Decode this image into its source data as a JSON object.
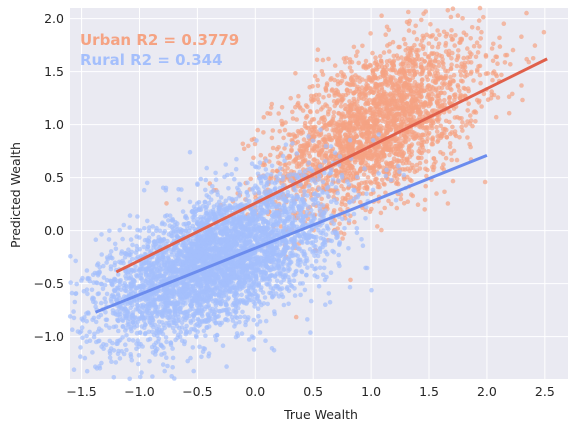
{
  "chart_data": {
    "type": "scatter",
    "title": "",
    "xlabel": "True Wealth",
    "ylabel": "Predicted Wealth",
    "xlim": [
      -1.6,
      2.7
    ],
    "ylim": [
      -1.4,
      2.1
    ],
    "xticks": [
      -1.5,
      -1.0,
      -0.5,
      0.0,
      0.5,
      1.0,
      1.5,
      2.0,
      2.5
    ],
    "xtick_labels": [
      "−1.5",
      "−1.0",
      "−0.5",
      "0.0",
      "0.5",
      "1.0",
      "1.5",
      "2.0",
      "2.5"
    ],
    "yticks": [
      -1.0,
      -0.5,
      0.0,
      0.5,
      1.0,
      1.5,
      2.0
    ],
    "ytick_labels": [
      "−1.0",
      "−0.5",
      "0.0",
      "0.5",
      "1.0",
      "1.5",
      "2.0"
    ],
    "grid": true,
    "background": "#eaeaf2",
    "annotations": [
      {
        "text": "Urban R2 = 0.3779",
        "color": "#f5a383"
      },
      {
        "text": "Rural R2 = 0.344",
        "color": "#a4bffc"
      }
    ],
    "series": [
      {
        "group": "urban",
        "color": "#f5a383",
        "trend_color": "#e0604b",
        "cloud": {
          "x_mean": 1.05,
          "x_sd": 0.45,
          "y_mean": 1.0,
          "y_sd": 0.35,
          "slope": 0.5
        },
        "trendline": {
          "x": [
            -1.2,
            2.52
          ],
          "y": [
            -0.39,
            1.62
          ]
        }
      },
      {
        "group": "rural",
        "color": "#a4bffc",
        "trend_color": "#6b8cee",
        "cloud": {
          "x_mean": -0.35,
          "x_sd": 0.5,
          "y_mean": -0.3,
          "y_sd": 0.3,
          "slope": 0.44
        },
        "trendline": {
          "x": [
            -1.38,
            2.0
          ],
          "y": [
            -0.77,
            0.71
          ]
        }
      }
    ]
  }
}
